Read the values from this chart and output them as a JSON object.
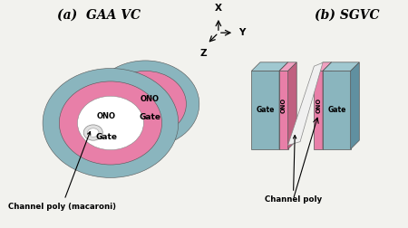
{
  "bg_color": "#f2f2ee",
  "title_a": "(a)  GAA VC",
  "title_b": "(b) SGVC",
  "label_gate": "Gate",
  "label_ono": "ONO",
  "label_channel_a": "Channel poly (macaroni)",
  "label_channel_b": "Channel poly",
  "color_gate": "#8ab5be",
  "color_ono": "#e87fa8",
  "color_channel": "#ffffff",
  "color_gate_dark": "#6a96a0",
  "color_ono_dark": "#c85080",
  "axis_x_label": "X",
  "axis_y_label": "Y",
  "axis_z_label": "Z"
}
